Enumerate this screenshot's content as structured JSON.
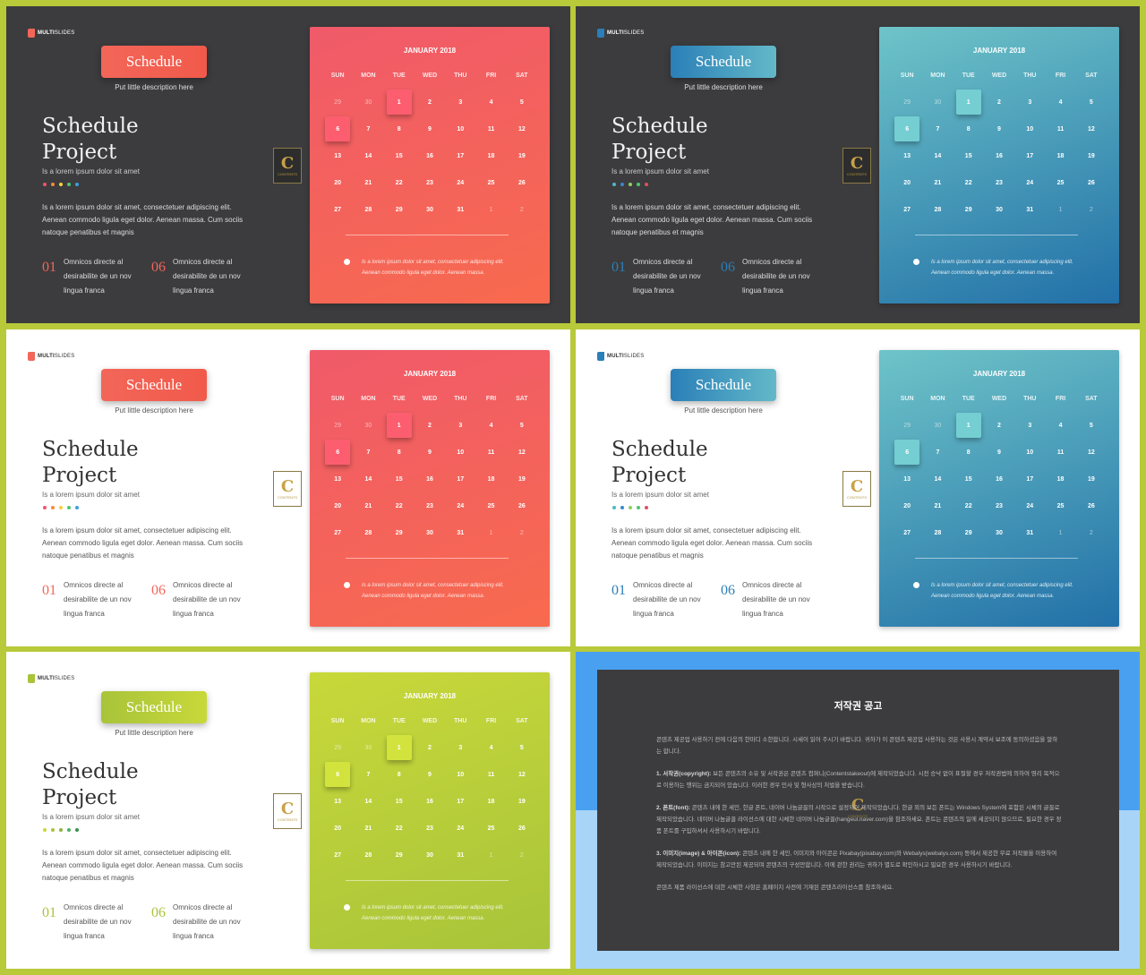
{
  "common": {
    "logo_bold": "MULTI",
    "logo_thin": "SLIDES",
    "pill_label": "Schedule",
    "pill_desc": "Put little description here",
    "title": "Schedule\nProject",
    "subtitle": "Is a lorem ipsum dolor sit amet",
    "paragraph": "Is a lorem ipsum dolor sit amet, consectetuer adipiscing elit. Aenean commodo ligula eget dolor. Aenean massa. Cum sociis natoque penatibus et magnis",
    "stat1_num": "01",
    "stat1_text": "Omnicos directe al desirabilite de un nov lingua franca",
    "stat2_num": "06",
    "stat2_text": "Omnicos directe al desirabilite de un nov lingua franca",
    "badge_letter": "C",
    "badge_text": "CONTENTS",
    "calendar_month": "JANUARY 2018",
    "weekdays": [
      "SUN",
      "MON",
      "TUE",
      "WED",
      "THU",
      "FRI",
      "SAT"
    ],
    "calendar_note": "Is a lorem ipsum dolor sit amet, consectetuer adipiscing elit. Aenean commodo ligula eget dolor. Aenean massa.",
    "days": [
      "29",
      "30",
      "1",
      "2",
      "3",
      "4",
      "5",
      "6",
      "7",
      "8",
      "9",
      "10",
      "11",
      "12",
      "13",
      "14",
      "15",
      "16",
      "17",
      "18",
      "19",
      "20",
      "21",
      "22",
      "23",
      "24",
      "25",
      "26",
      "27",
      "28",
      "29",
      "30",
      "31",
      "1",
      "2"
    ],
    "dim_indexes": [
      0,
      1,
      33,
      34
    ],
    "highlight_indexes": [
      2,
      7
    ]
  },
  "slides": [
    {
      "theme": "dark",
      "accent": "#f26659",
      "accent2": "#f15a4a",
      "cal_top": "#f05a6a",
      "cal_bottom": "#f86a4e",
      "dots": [
        "#f0556a",
        "#f88a3a",
        "#f6d040",
        "#4cc870",
        "#3aa0e0"
      ]
    },
    {
      "theme": "dark",
      "accent": "#2a7fb8",
      "accent2": "#63b9c8",
      "cal_top": "#6ec4c8",
      "cal_bottom": "#2270a8",
      "dots": [
        "#4cb8c8",
        "#3a88d0",
        "#8ed060",
        "#4cc870",
        "#e05060"
      ]
    },
    {
      "theme": "light",
      "accent": "#f26659",
      "accent2": "#f15a4a",
      "cal_top": "#f05a6a",
      "cal_bottom": "#f86a4e",
      "dots": [
        "#f0556a",
        "#f88a3a",
        "#f6d040",
        "#4cc870",
        "#3aa0e0"
      ]
    },
    {
      "theme": "light",
      "accent": "#2a7fb8",
      "accent2": "#63b9c8",
      "cal_top": "#6ec4c8",
      "cal_bottom": "#2270a8",
      "dots": [
        "#4cb8c8",
        "#3a88d0",
        "#8ed060",
        "#4cc870",
        "#e05060"
      ]
    },
    {
      "theme": "light",
      "accent": "#a8c43a",
      "accent2": "#c8d83a",
      "cal_top": "#c8d83a",
      "cal_bottom": "#a8c43a",
      "dots": [
        "#c8d83a",
        "#a8c43a",
        "#8ab440",
        "#4cb060",
        "#3a9050"
      ]
    }
  ],
  "notice": {
    "title": "저작권 공고",
    "p1": "콘텐츠 제공업 사용하기 전에 다음의 한마디 소한합니다. 시세이 읽어 주시기 바랍니다. 귀하가 이 콘텐츠 제공업 사용하는 것은 사용시 계약서 보조에 동의하셨음을 말하는 합니다.",
    "p2_head": "1. 서작권(copyright):",
    "p2": " 보든 콘텐츠의 소유 및 서작권은 콘텐츠 컴퍼니(Contentstakeout)에 제작되었습니다. 시전 승낙 없이 표절할 경우 저작권법에 의하여 영리 목적으로 이용하는 행위는 금지되어 있습니다. 이러한 경우 민사 및 형사상의 처벌을 받습니다.",
    "p3_head": "2. 폰트(font):",
    "p3": " 콘텐츠 내에 한 세인, 한글 폰트, 네이버 나눔글꼴의 시작으로 설정되어 제작되었습니다. 한글 외의 보든 폰트는 Windows System에 포함된 시체의 글꼴로 제작되었습니다. 네이버 나눔글꼴 라이선스에 대한 시체한 네이버 나눔글꼴(hangeul.naver.com)을 참조하세요. 폰트는 콘텐츠의 일에 세공되지 않으므로, 필요한 경우 정품 폰트를 구입하셔서 사용하시기 바랍니다.",
    "p4_head": "3. 이미지(image) & 아이콘(icon):",
    "p4": " 콘텐츠 내에 한 세인, 이미지와 아이콘은 Pixabay(pixabay.com)와 Webalys(webalys.com) 등에서 제공한 무료 저작물을 이용하여 제작되었습니다. 이미지는 참고만된 제공되며 콘텐츠의 구성만합니다. 이에 관한 권리는 귀하가 별도로 확인하시고 필요한 경우 사용하시기 바랍니다.",
    "p5": "콘텐츠 제품 라이선스에 대한 시체한 사항은 홈페이지 사전에 기재된 콘텐츠라이선스를 참조하세요.",
    "badge_letter": "C",
    "badge_text": "CONTENTS"
  }
}
